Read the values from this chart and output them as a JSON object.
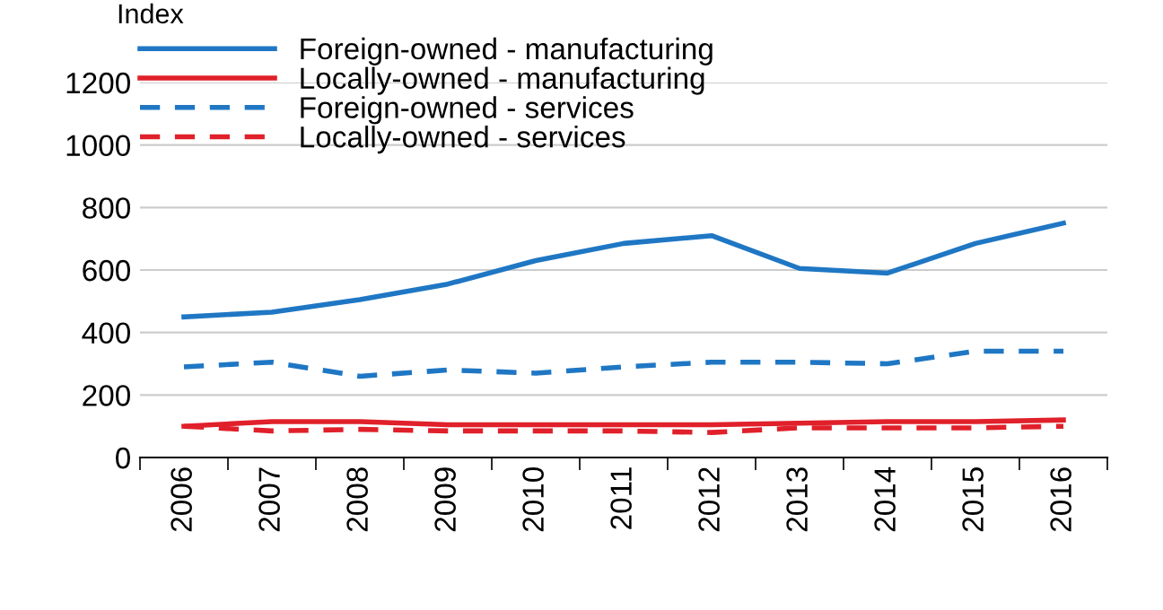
{
  "chart_data": {
    "type": "line",
    "ylabel": "Index",
    "categories": [
      "2006",
      "2007",
      "2008",
      "2009",
      "2010",
      "2011",
      "2012",
      "2013",
      "2014",
      "2015",
      "2016"
    ],
    "series": [
      {
        "name": "Foreign-owned - manufacturing",
        "color": "#1f77c4",
        "line_style": "solid",
        "values": [
          450,
          465,
          505,
          555,
          630,
          685,
          710,
          605,
          590,
          685,
          750
        ]
      },
      {
        "name": "Locally-owned - manufacturing",
        "color": "#e0202a",
        "line_style": "solid",
        "values": [
          100,
          115,
          115,
          105,
          105,
          105,
          105,
          110,
          115,
          115,
          120
        ]
      },
      {
        "name": "Foreign-owned - services",
        "color": "#1f77c4",
        "line_style": "dashed",
        "values": [
          290,
          305,
          260,
          280,
          270,
          290,
          305,
          305,
          300,
          340,
          340
        ]
      },
      {
        "name": "Locally-owned - services",
        "color": "#e0202a",
        "line_style": "dashed",
        "values": [
          100,
          85,
          90,
          85,
          85,
          85,
          80,
          95,
          95,
          95,
          100
        ]
      }
    ],
    "ylim": [
      0,
      1200
    ],
    "yticks": [
      0,
      200,
      400,
      600,
      800,
      1000,
      1200
    ],
    "grid": "y",
    "legend": "top left",
    "marker": "none"
  }
}
